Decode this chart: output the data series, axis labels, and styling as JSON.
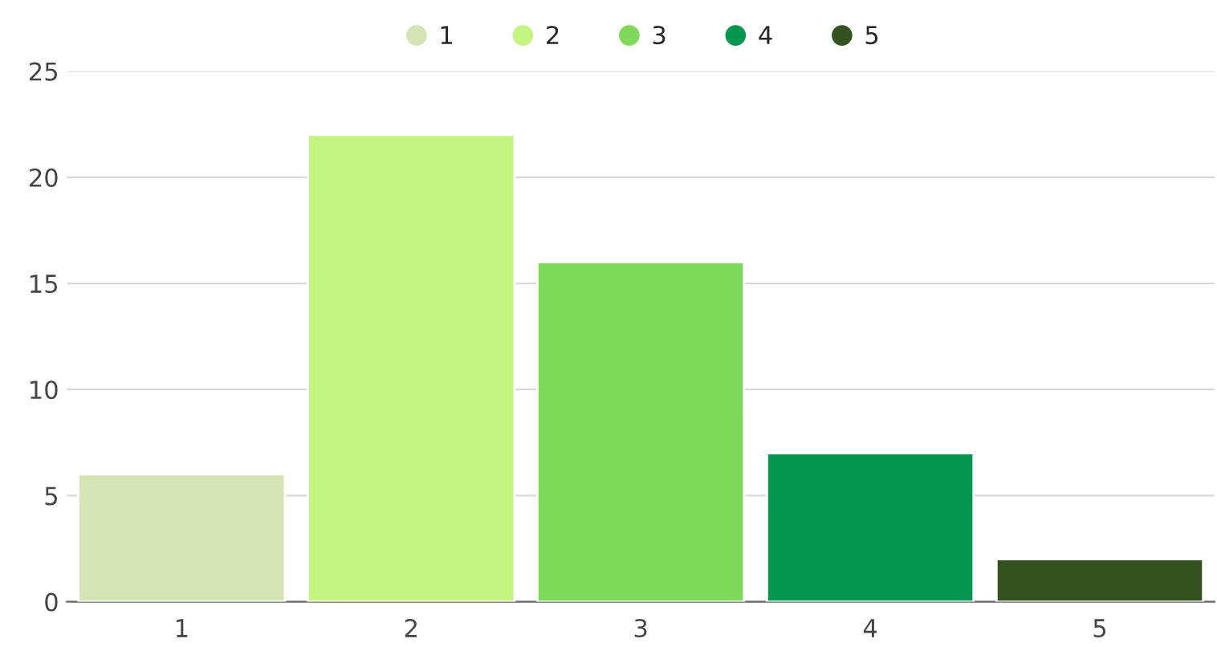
{
  "chart_data": {
    "type": "bar",
    "categories": [
      "1",
      "2",
      "3",
      "4",
      "5"
    ],
    "series": [
      {
        "name": "1",
        "color": "#d3e4b5",
        "values": [
          6,
          null,
          null,
          null,
          null
        ]
      },
      {
        "name": "2",
        "color": "#c4f581",
        "values": [
          null,
          22,
          null,
          null,
          null
        ]
      },
      {
        "name": "3",
        "color": "#7fd95a",
        "values": [
          null,
          null,
          16,
          null,
          null
        ]
      },
      {
        "name": "4",
        "color": "#03974f",
        "values": [
          null,
          null,
          null,
          7,
          null
        ]
      },
      {
        "name": "5",
        "color": "#33521f",
        "values": [
          null,
          null,
          null,
          null,
          2
        ]
      }
    ],
    "ylim": [
      0,
      25
    ],
    "yticks": [
      0,
      5,
      10,
      15,
      20,
      25
    ],
    "grid": "y",
    "legend": "top"
  }
}
